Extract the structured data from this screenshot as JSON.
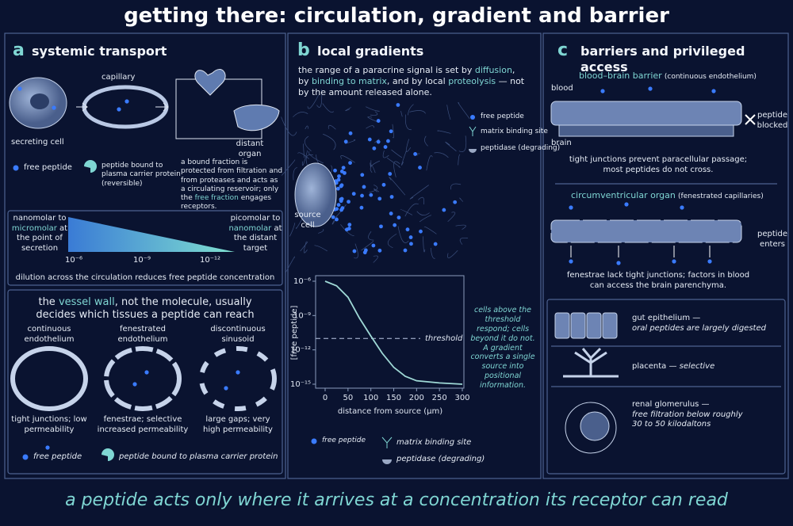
{
  "title": "getting there: circulation, gradient and barrier",
  "footer": "a peptide acts only where it arrives at a concentration its receptor can read",
  "panel_a": {
    "letter": "a",
    "heading": "systemic transport",
    "capillary": "capillary",
    "secreting_cell": "secreting cell",
    "distant_organ": "distant organ",
    "legend_free": "free peptide",
    "legend_bound": "peptide bound to plasma carrier protein (reversible)",
    "note": [
      "a bound fraction is protected from filtration and from proteases and acts as a circulating reservoir; only the ",
      "free fraction",
      " engages receptors."
    ],
    "gradient": {
      "left": [
        "nanomolar to ",
        "micromolar",
        " at the point of secretion"
      ],
      "right": [
        "picomolar to ",
        "nanomolar",
        " at the distant target"
      ],
      "ticks": [
        "10⁻⁶",
        "10⁻⁹",
        "10⁻¹²"
      ],
      "caption": "dilution across the circulation reduces free peptide concentration"
    },
    "vessel": {
      "heading": [
        "the ",
        "vessel wall",
        ", not the molecule, usually decides which tissues a peptide can reach"
      ],
      "types": [
        {
          "name": "continuous endothelium",
          "note": "tight junctions; low permeability"
        },
        {
          "name": "fenestrated endothelium",
          "note": "fenestrae; selective increased permeability"
        },
        {
          "name": "discontinuous sinusoid",
          "note": "large gaps; very high permeability"
        }
      ],
      "legend_free": "free peptide",
      "legend_bound": "peptide bound to plasma carrier protein"
    }
  },
  "panel_b": {
    "letter": "b",
    "heading": "local gradients",
    "intro": [
      "the range of a paracrine signal is set by ",
      "diffusion",
      ", by ",
      "binding to matrix",
      ", and by local ",
      "proteolysis",
      " — not by the amount released alone."
    ],
    "source": "source cell",
    "legend": [
      "free peptide",
      "matrix binding site",
      "peptidase (degrading)"
    ],
    "side_note": "cells above the threshold respond; cells beyond it do not. A gradient converts a single source into positional information.",
    "legend_bottom": [
      "free peptide",
      "matrix binding site",
      "peptidase (degrading)"
    ]
  },
  "chart_data": {
    "type": "line",
    "ylabel": "[free peptide]",
    "xlabel": "distance from source (µm)",
    "x": [
      0,
      25,
      50,
      75,
      100,
      125,
      150,
      175,
      200,
      250,
      300
    ],
    "values": [
      1e-06,
      4e-07,
      4e-08,
      6e-10,
      1.6e-11,
      5e-13,
      3e-14,
      5e-15,
      2e-15,
      1.3e-15,
      1e-15
    ],
    "color": "#9fd9d6",
    "log_y": true,
    "xlim": [
      0,
      300
    ],
    "xticks": [
      0,
      50,
      100,
      150,
      200,
      250,
      300
    ],
    "ylim": [
      1e-15,
      1e-06
    ],
    "yticks": [
      {
        "value": 1e-06,
        "label": "10⁻⁶"
      },
      {
        "value": 1e-09,
        "label": "10⁻⁹"
      },
      {
        "value": 1e-12,
        "label": "10⁻¹²"
      },
      {
        "value": 1e-15,
        "label": "10⁻¹⁵"
      }
    ],
    "threshold": {
      "value": 1e-11,
      "label": "threshold"
    }
  },
  "panel_c": {
    "letter": "c",
    "heading": "barriers and privileged access",
    "bbb": {
      "title": "blood–brain barrier",
      "paren": "(continuous endothelium)",
      "blood": "blood",
      "brain": "brain",
      "side": "peptide blocked",
      "caption": "tight junctions prevent paracellular passage; most peptides do not cross."
    },
    "cvo": {
      "title": "circumventricular organ",
      "paren": "(fenestrated capillaries)",
      "side": "peptide enters",
      "caption": "fenestrae lack tight junctions; factors in blood can access the brain parenchyma."
    },
    "tissues": [
      {
        "name": "gut epithelium —",
        "note": "oral peptides are largely digested"
      },
      {
        "name": "placenta —",
        "note": "selective"
      },
      {
        "name": "renal glomerulus —",
        "note": "free filtration below roughly 30 to 50 kilodaltons"
      }
    ]
  }
}
